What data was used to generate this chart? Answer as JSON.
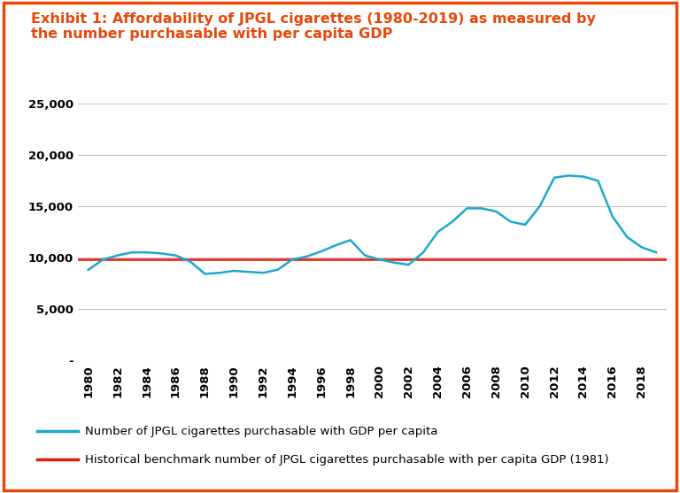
{
  "title_line1": "Exhibit 1: Affordability of JPGL cigarettes (1980-2019) as measured by",
  "title_line2": "the number purchasable with per capita GDP",
  "title_color": "#E8470A",
  "background_color": "#FFFFFF",
  "border_color": "#E8470A",
  "years": [
    1980,
    1981,
    1982,
    1983,
    1984,
    1985,
    1986,
    1987,
    1988,
    1989,
    1990,
    1991,
    1992,
    1993,
    1994,
    1995,
    1996,
    1997,
    1998,
    1999,
    2000,
    2001,
    2002,
    2003,
    2004,
    2005,
    2006,
    2007,
    2008,
    2009,
    2010,
    2011,
    2012,
    2013,
    2014,
    2015,
    2016,
    2017,
    2018,
    2019
  ],
  "blue_line": [
    8800,
    9800,
    10200,
    10500,
    10500,
    10400,
    10200,
    9600,
    8400,
    8500,
    8700,
    8600,
    8500,
    8800,
    9800,
    10100,
    10600,
    11200,
    11700,
    10200,
    9800,
    9500,
    9300,
    10500,
    12500,
    13500,
    14800,
    14800,
    14500,
    13500,
    13200,
    15000,
    17800,
    18000,
    17900,
    17500,
    14000,
    12000,
    11000,
    10500
  ],
  "red_line_value": 9800,
  "blue_color": "#1DA8CC",
  "red_color": "#E8190A",
  "ylim": [
    0,
    26000
  ],
  "yticks": [
    0,
    5000,
    10000,
    15000,
    20000,
    25000
  ],
  "ytick_labels": [
    "-",
    "5,000",
    "10,000",
    "15,000",
    "20,000",
    "25,000"
  ],
  "xtick_labels": [
    "1980",
    "1982",
    "1984",
    "1986",
    "1988",
    "1990",
    "1992",
    "1994",
    "1996",
    "1998",
    "2000",
    "2002",
    "2004",
    "2006",
    "2008",
    "2010",
    "2012",
    "2014",
    "2016",
    "2018"
  ],
  "legend_blue": "Number of JPGL cigarettes purchasable with GDP per capita",
  "legend_red": "Historical benchmark number of JPGL cigarettes purchasable with per capita GDP (1981)",
  "legend_text_color": "#000000",
  "tick_color": "#000000",
  "grid_color": "#BBBBBB",
  "font_family": "Arial",
  "title_fontsize": 11.5,
  "tick_fontsize": 9.5,
  "legend_fontsize": 9.5
}
